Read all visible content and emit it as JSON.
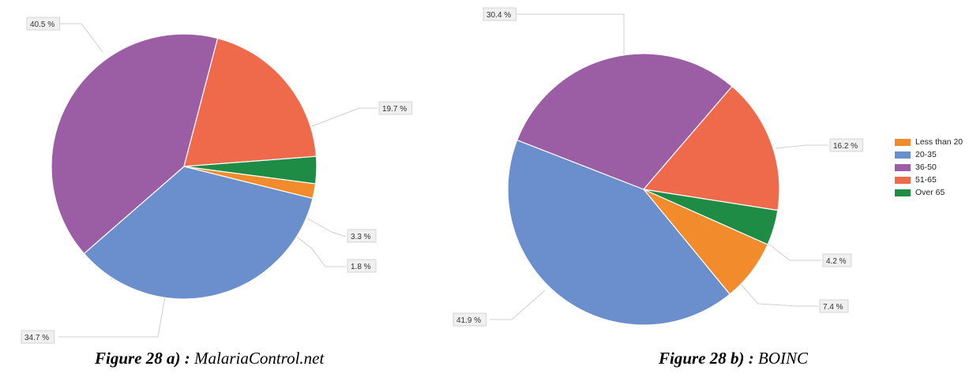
{
  "chart_data": [
    {
      "type": "pie",
      "title": "",
      "unit": "%",
      "categories": [
        "Less than 20",
        "20-35",
        "36-50",
        "51-65",
        "Over 65"
      ],
      "values": [
        1.8,
        34.7,
        40.5,
        19.7,
        3.3
      ],
      "labels": [
        "1.8 %",
        "34.7 %",
        "40.5 %",
        "19.7 %",
        "3.3 %"
      ],
      "colors": [
        "#f28b2b",
        "#6a8fcc",
        "#9b5ea5",
        "#ee6a4a",
        "#1e8c44"
      ],
      "legend": false
    },
    {
      "type": "pie",
      "title": "",
      "unit": "%",
      "categories": [
        "Less than 20",
        "20-35",
        "36-50",
        "51-65",
        "Over 65"
      ],
      "values": [
        7.4,
        41.9,
        30.4,
        16.2,
        4.2
      ],
      "labels": [
        "7.4 %",
        "41.9 %",
        "30.4 %",
        "16.2 %",
        "4.2 %"
      ],
      "colors": [
        "#f28b2b",
        "#6a8fcc",
        "#9b5ea5",
        "#ee6a4a",
        "#1e8c44"
      ],
      "legend": true,
      "legend_position": "right"
    }
  ],
  "legend": {
    "items": [
      {
        "label": "Less than 20",
        "color": "#f28b2b"
      },
      {
        "label": "20-35",
        "color": "#6a8fcc"
      },
      {
        "label": "36-50",
        "color": "#9b5ea5"
      },
      {
        "label": "51-65",
        "color": "#ee6a4a"
      },
      {
        "label": "Over 65",
        "color": "#1e8c44"
      }
    ]
  },
  "captions": {
    "a": {
      "bold": "Figure 28 a) :",
      "text": "MalariaControl.net"
    },
    "b": {
      "bold": "Figure 28 b) :",
      "text": "BOINC"
    }
  }
}
